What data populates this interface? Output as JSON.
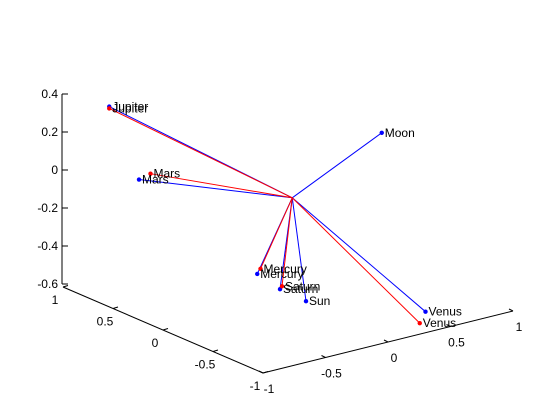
{
  "chart_data": {
    "type": "3d-line",
    "title": "",
    "ylabel": "",
    "xlabel": "",
    "zlabel": "",
    "grid": false,
    "z_axis": {
      "range": [
        -0.6,
        0.4
      ],
      "ticks": [
        -0.6,
        -0.4,
        -0.2,
        0,
        0.2,
        0.4
      ],
      "tick_labels": [
        "-0.6",
        "-0.4",
        "-0.2",
        "0",
        "0.2",
        "0.4"
      ]
    },
    "left_axis": {
      "range": [
        -1,
        1
      ],
      "ticks": [
        1,
        0.5,
        0,
        -0.5,
        -1
      ],
      "tick_labels": [
        "1",
        "0.5",
        "0",
        "-0.5",
        "-1"
      ]
    },
    "right_axis": {
      "range": [
        -1,
        1
      ],
      "ticks": [
        -1,
        -0.5,
        0,
        0.5,
        1
      ],
      "tick_labels": [
        "-1",
        "-0.5",
        "0",
        "0.5",
        "1"
      ]
    },
    "origin": {
      "a": 0.02,
      "b": 0.05,
      "z": -0.08
    },
    "series": [
      {
        "color": "#0000ff",
        "points": [
          {
            "label": "Jupiter",
            "a": 0.55,
            "b": -0.99,
            "z": 0.45
          },
          {
            "label": "Moon",
            "a": -0.75,
            "b": 0.15,
            "z": 0.42
          },
          {
            "label": "Mars",
            "a": 0.99,
            "b": -0.4,
            "z": -0.13
          },
          {
            "label": "Mercury",
            "a": 0.37,
            "b": 0.05,
            "z": -0.56
          },
          {
            "label": "Saturn",
            "a": 0.23,
            "b": 0.12,
            "z": -0.62
          },
          {
            "label": "Sun",
            "a": 0.07,
            "b": 0.2,
            "z": -0.66
          },
          {
            "label": "Venus",
            "a": -0.55,
            "b": 0.66,
            "z": -0.65
          }
        ]
      },
      {
        "color": "#ff0000",
        "points": [
          {
            "label": "Jupiter",
            "a": 0.55,
            "b": -0.99,
            "z": 0.44
          },
          {
            "label": "Mars",
            "a": 0.95,
            "b": -0.34,
            "z": -0.1
          },
          {
            "label": "Mercury",
            "a": 0.35,
            "b": 0.06,
            "z": -0.53
          },
          {
            "label": "Saturn",
            "a": 0.21,
            "b": 0.12,
            "z": -0.6
          },
          {
            "label": "Venus",
            "a": -0.53,
            "b": 0.63,
            "z": -0.71
          }
        ]
      }
    ]
  }
}
